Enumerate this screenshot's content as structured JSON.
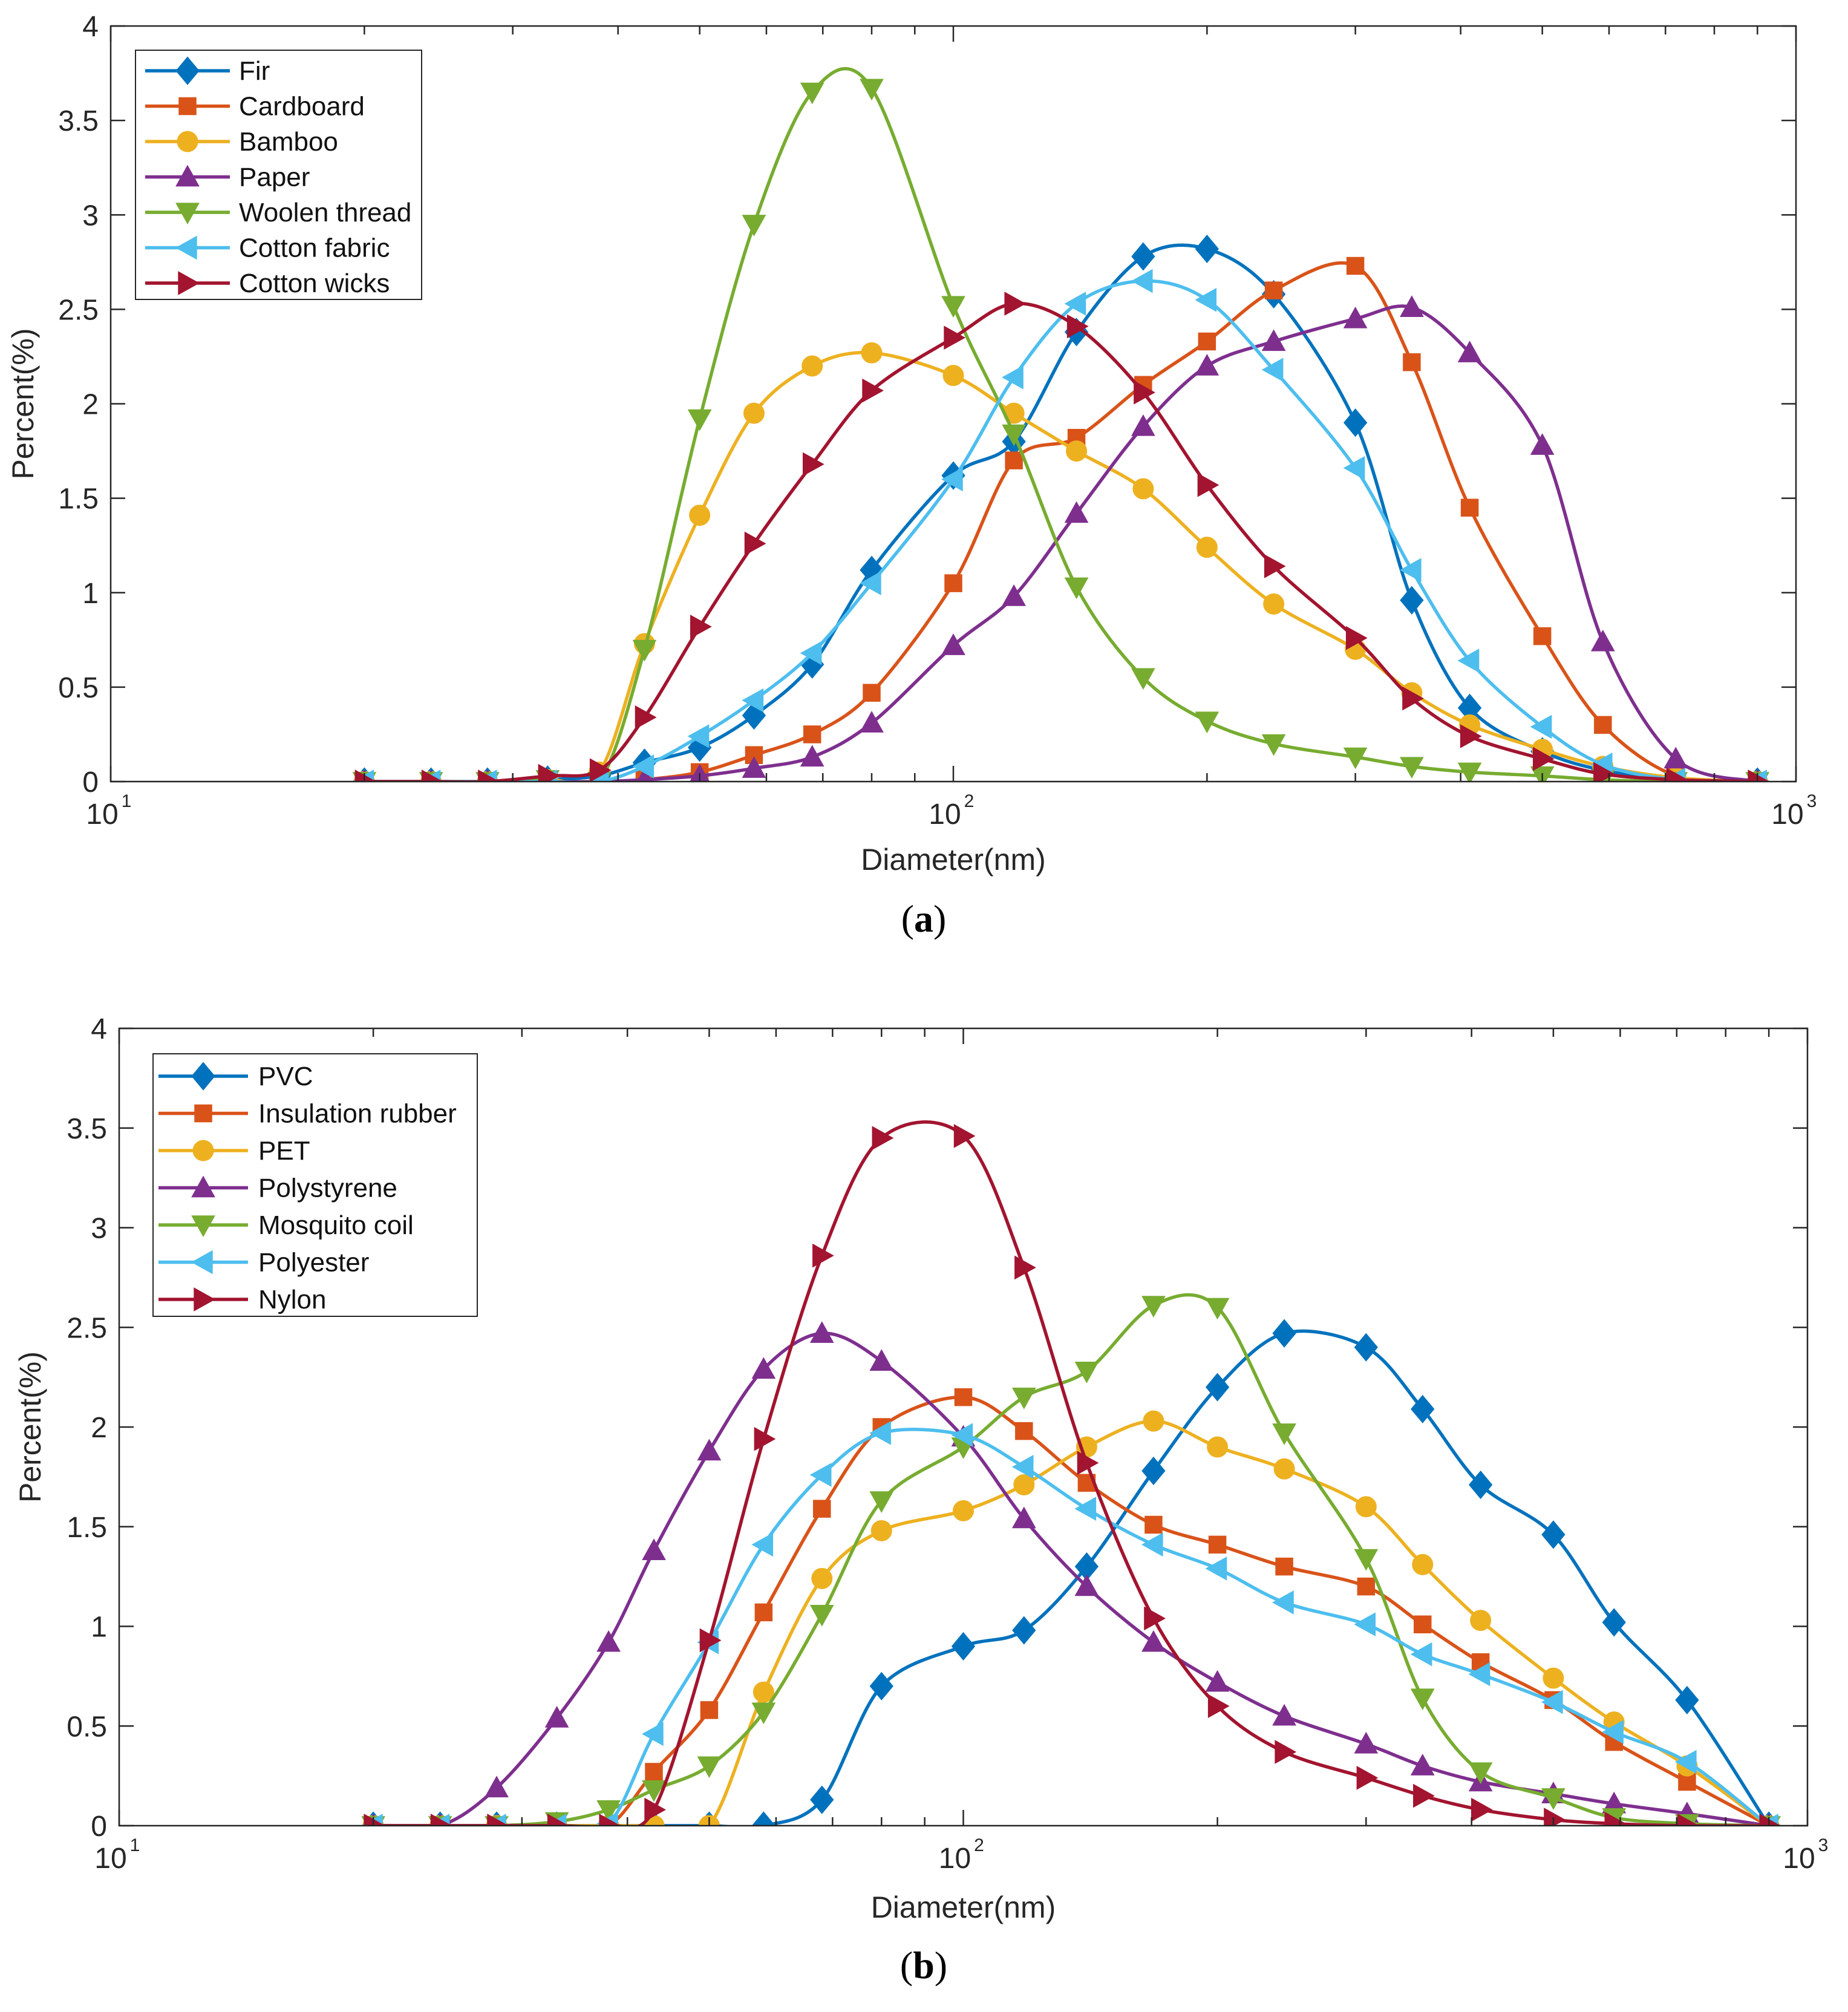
{
  "chart_data": [
    {
      "type": "line",
      "caption_open": "(",
      "caption_letter": "a",
      "caption_close": ")",
      "xlabel": "Diameter(nm)",
      "ylabel": "Percent(%)",
      "xscale": "log",
      "xlim": [
        10,
        1000
      ],
      "ylim": [
        0,
        4
      ],
      "yticks": [
        "0",
        "0.5",
        "1",
        "1.5",
        "2",
        "2.5",
        "3",
        "3.5",
        "4"
      ],
      "xticks": [
        {
          "base": "10",
          "exp": "1"
        },
        {
          "base": "10",
          "exp": "2"
        },
        {
          "base": "10",
          "exp": "3"
        }
      ],
      "legend_position": "top-left",
      "series": [
        {
          "name": "Fir",
          "color": "#0072BD",
          "marker": "diamond",
          "x": [
            20,
            24,
            28,
            33,
            38,
            43,
            50,
            58,
            68,
            80,
            100,
            118,
            140,
            168,
            200,
            240,
            300,
            350,
            410,
            500,
            590,
            720,
            900
          ],
          "y": [
            0,
            0,
            0,
            0.01,
            0.03,
            0.1,
            0.18,
            0.35,
            0.62,
            1.12,
            1.62,
            1.8,
            2.38,
            2.78,
            2.82,
            2.58,
            1.9,
            0.96,
            0.39,
            0.16,
            0.06,
            0.01,
            0
          ]
        },
        {
          "name": "Cardboard",
          "color": "#D95319",
          "marker": "square",
          "x": [
            20,
            24,
            28,
            33,
            38,
            43,
            50,
            58,
            68,
            80,
            100,
            118,
            140,
            168,
            200,
            240,
            300,
            350,
            410,
            500,
            590,
            720,
            900
          ],
          "y": [
            0,
            0,
            0,
            0,
            0,
            0.01,
            0.05,
            0.14,
            0.25,
            0.47,
            1.05,
            1.7,
            1.82,
            2.1,
            2.33,
            2.6,
            2.73,
            2.22,
            1.45,
            0.77,
            0.3,
            0.03,
            0
          ]
        },
        {
          "name": "Bamboo",
          "color": "#EDB120",
          "marker": "circle",
          "x": [
            20,
            24,
            28,
            33,
            38,
            43,
            50,
            58,
            68,
            80,
            100,
            118,
            140,
            168,
            200,
            240,
            300,
            350,
            410,
            500,
            590,
            720,
            900
          ],
          "y": [
            0,
            0,
            0,
            0.01,
            0.05,
            0.73,
            1.41,
            1.95,
            2.2,
            2.27,
            2.15,
            1.95,
            1.75,
            1.55,
            1.24,
            0.94,
            0.7,
            0.47,
            0.3,
            0.17,
            0.08,
            0.02,
            0
          ]
        },
        {
          "name": "Paper",
          "color": "#7E2F8E",
          "marker": "triangle-up",
          "x": [
            20,
            24,
            28,
            33,
            38,
            43,
            50,
            58,
            68,
            80,
            100,
            118,
            140,
            168,
            200,
            240,
            300,
            350,
            410,
            500,
            590,
            720,
            900
          ],
          "y": [
            0,
            0,
            0,
            0,
            0,
            0.01,
            0.03,
            0.07,
            0.13,
            0.31,
            0.72,
            0.98,
            1.42,
            1.88,
            2.2,
            2.33,
            2.45,
            2.51,
            2.27,
            1.78,
            0.74,
            0.12,
            0
          ]
        },
        {
          "name": "Woolen thread",
          "color": "#77AC30",
          "marker": "triangle-down",
          "x": [
            20,
            24,
            28,
            33,
            38,
            43,
            50,
            58,
            68,
            80,
            100,
            118,
            140,
            168,
            200,
            240,
            300,
            350,
            410,
            500,
            590,
            720,
            900
          ],
          "y": [
            0,
            0,
            0,
            0.01,
            0,
            0.7,
            1.92,
            2.95,
            3.65,
            3.67,
            2.52,
            1.84,
            1.03,
            0.55,
            0.32,
            0.2,
            0.13,
            0.08,
            0.05,
            0.03,
            0.01,
            0,
            0
          ]
        },
        {
          "name": "Cotton fabric",
          "color": "#4DBEEE",
          "marker": "triangle-left",
          "x": [
            20,
            24,
            28,
            33,
            38,
            43,
            50,
            58,
            68,
            80,
            100,
            118,
            140,
            168,
            200,
            240,
            300,
            350,
            410,
            500,
            590,
            720,
            900
          ],
          "y": [
            0,
            0,
            0,
            0,
            0,
            0.08,
            0.24,
            0.43,
            0.68,
            1.05,
            1.6,
            2.14,
            2.53,
            2.65,
            2.55,
            2.18,
            1.66,
            1.12,
            0.64,
            0.29,
            0.09,
            0.01,
            0
          ]
        },
        {
          "name": "Cotton wicks",
          "color": "#A2142F",
          "marker": "triangle-right",
          "x": [
            20,
            24,
            28,
            33,
            38,
            43,
            50,
            58,
            68,
            80,
            100,
            118,
            140,
            168,
            200,
            240,
            300,
            350,
            410,
            500,
            590,
            720,
            900
          ],
          "y": [
            0,
            0,
            0,
            0.03,
            0.06,
            0.34,
            0.82,
            1.26,
            1.68,
            2.07,
            2.35,
            2.53,
            2.41,
            2.06,
            1.57,
            1.14,
            0.76,
            0.44,
            0.24,
            0.12,
            0.04,
            0.01,
            0
          ]
        }
      ]
    },
    {
      "type": "line",
      "caption_open": "(",
      "caption_letter": "b",
      "caption_close": ")",
      "xlabel": "Diameter(nm)",
      "ylabel": "Percent(%)",
      "xscale": "log",
      "xlim": [
        10,
        1000
      ],
      "ylim": [
        0,
        4
      ],
      "yticks": [
        "0",
        "0.5",
        "1",
        "1.5",
        "2",
        "2.5",
        "3",
        "3.5",
        "4"
      ],
      "xticks": [
        {
          "base": "10",
          "exp": "1"
        },
        {
          "base": "10",
          "exp": "2"
        },
        {
          "base": "10",
          "exp": "3"
        }
      ],
      "legend_position": "top-left",
      "series": [
        {
          "name": "PVC",
          "color": "#0072BD",
          "marker": "diamond",
          "x": [
            20,
            24,
            28,
            33,
            38,
            43,
            50,
            58,
            68,
            80,
            100,
            118,
            140,
            168,
            200,
            240,
            300,
            350,
            410,
            500,
            590,
            720,
            900
          ],
          "y": [
            0,
            0,
            0,
            0,
            0,
            0,
            0,
            0,
            0.13,
            0.7,
            0.9,
            0.98,
            1.3,
            1.78,
            2.2,
            2.47,
            2.4,
            2.09,
            1.71,
            1.46,
            1.02,
            0.63,
            0
          ]
        },
        {
          "name": "Insulation rubber",
          "color": "#D95319",
          "marker": "square",
          "x": [
            20,
            24,
            28,
            33,
            38,
            43,
            50,
            58,
            68,
            80,
            100,
            118,
            140,
            168,
            200,
            240,
            300,
            350,
            410,
            500,
            590,
            720,
            900
          ],
          "y": [
            0,
            0,
            0,
            0,
            0,
            0.27,
            0.58,
            1.07,
            1.59,
            2.0,
            2.15,
            1.98,
            1.72,
            1.51,
            1.41,
            1.3,
            1.2,
            1.01,
            0.82,
            0.63,
            0.42,
            0.22,
            0
          ]
        },
        {
          "name": "PET",
          "color": "#EDB120",
          "marker": "circle",
          "x": [
            20,
            24,
            28,
            33,
            38,
            43,
            50,
            58,
            68,
            80,
            100,
            118,
            140,
            168,
            200,
            240,
            300,
            350,
            410,
            500,
            590,
            720,
            900
          ],
          "y": [
            0,
            0,
            0,
            0,
            0,
            0,
            0,
            0.67,
            1.24,
            1.48,
            1.58,
            1.71,
            1.9,
            2.03,
            1.9,
            1.79,
            1.6,
            1.31,
            1.03,
            0.74,
            0.52,
            0.3,
            0
          ]
        },
        {
          "name": "Polystyrene",
          "color": "#7E2F8E",
          "marker": "triangle-up",
          "x": [
            20,
            24,
            28,
            33,
            38,
            43,
            50,
            58,
            68,
            80,
            100,
            118,
            140,
            168,
            200,
            240,
            300,
            350,
            410,
            500,
            590,
            720,
            900
          ],
          "y": [
            0,
            0,
            0.19,
            0.54,
            0.92,
            1.38,
            1.88,
            2.29,
            2.47,
            2.33,
            1.95,
            1.54,
            1.2,
            0.92,
            0.72,
            0.55,
            0.41,
            0.3,
            0.22,
            0.16,
            0.11,
            0.06,
            0
          ]
        },
        {
          "name": "Mosquito coil",
          "color": "#77AC30",
          "marker": "triangle-down",
          "x": [
            20,
            24,
            28,
            33,
            38,
            43,
            50,
            58,
            68,
            80,
            100,
            118,
            140,
            168,
            200,
            240,
            300,
            350,
            410,
            500,
            590,
            720,
            900
          ],
          "y": [
            0,
            0,
            0,
            0.02,
            0.08,
            0.18,
            0.3,
            0.57,
            1.06,
            1.63,
            1.9,
            2.15,
            2.28,
            2.61,
            2.6,
            1.97,
            1.34,
            0.64,
            0.27,
            0.14,
            0.04,
            0.01,
            0
          ]
        },
        {
          "name": "Polyester",
          "color": "#4DBEEE",
          "marker": "triangle-left",
          "x": [
            20,
            24,
            28,
            33,
            38,
            43,
            50,
            58,
            68,
            80,
            100,
            118,
            140,
            168,
            200,
            240,
            300,
            350,
            410,
            500,
            590,
            720,
            900
          ],
          "y": [
            0,
            0,
            0,
            0,
            0.01,
            0.46,
            0.92,
            1.41,
            1.76,
            1.97,
            1.96,
            1.8,
            1.59,
            1.41,
            1.29,
            1.12,
            1.01,
            0.86,
            0.76,
            0.62,
            0.47,
            0.32,
            0
          ]
        },
        {
          "name": "Nylon",
          "color": "#A2142F",
          "marker": "triangle-right",
          "x": [
            20,
            24,
            28,
            33,
            38,
            43,
            50,
            58,
            68,
            80,
            100,
            118,
            140,
            168,
            200,
            240,
            300,
            350,
            410,
            500,
            590,
            720,
            900
          ],
          "y": [
            0,
            0,
            0,
            0,
            0,
            0.08,
            0.93,
            1.94,
            2.86,
            3.45,
            3.46,
            2.8,
            1.82,
            1.04,
            0.6,
            0.37,
            0.24,
            0.15,
            0.08,
            0.03,
            0.01,
            0,
            0
          ]
        }
      ]
    }
  ]
}
